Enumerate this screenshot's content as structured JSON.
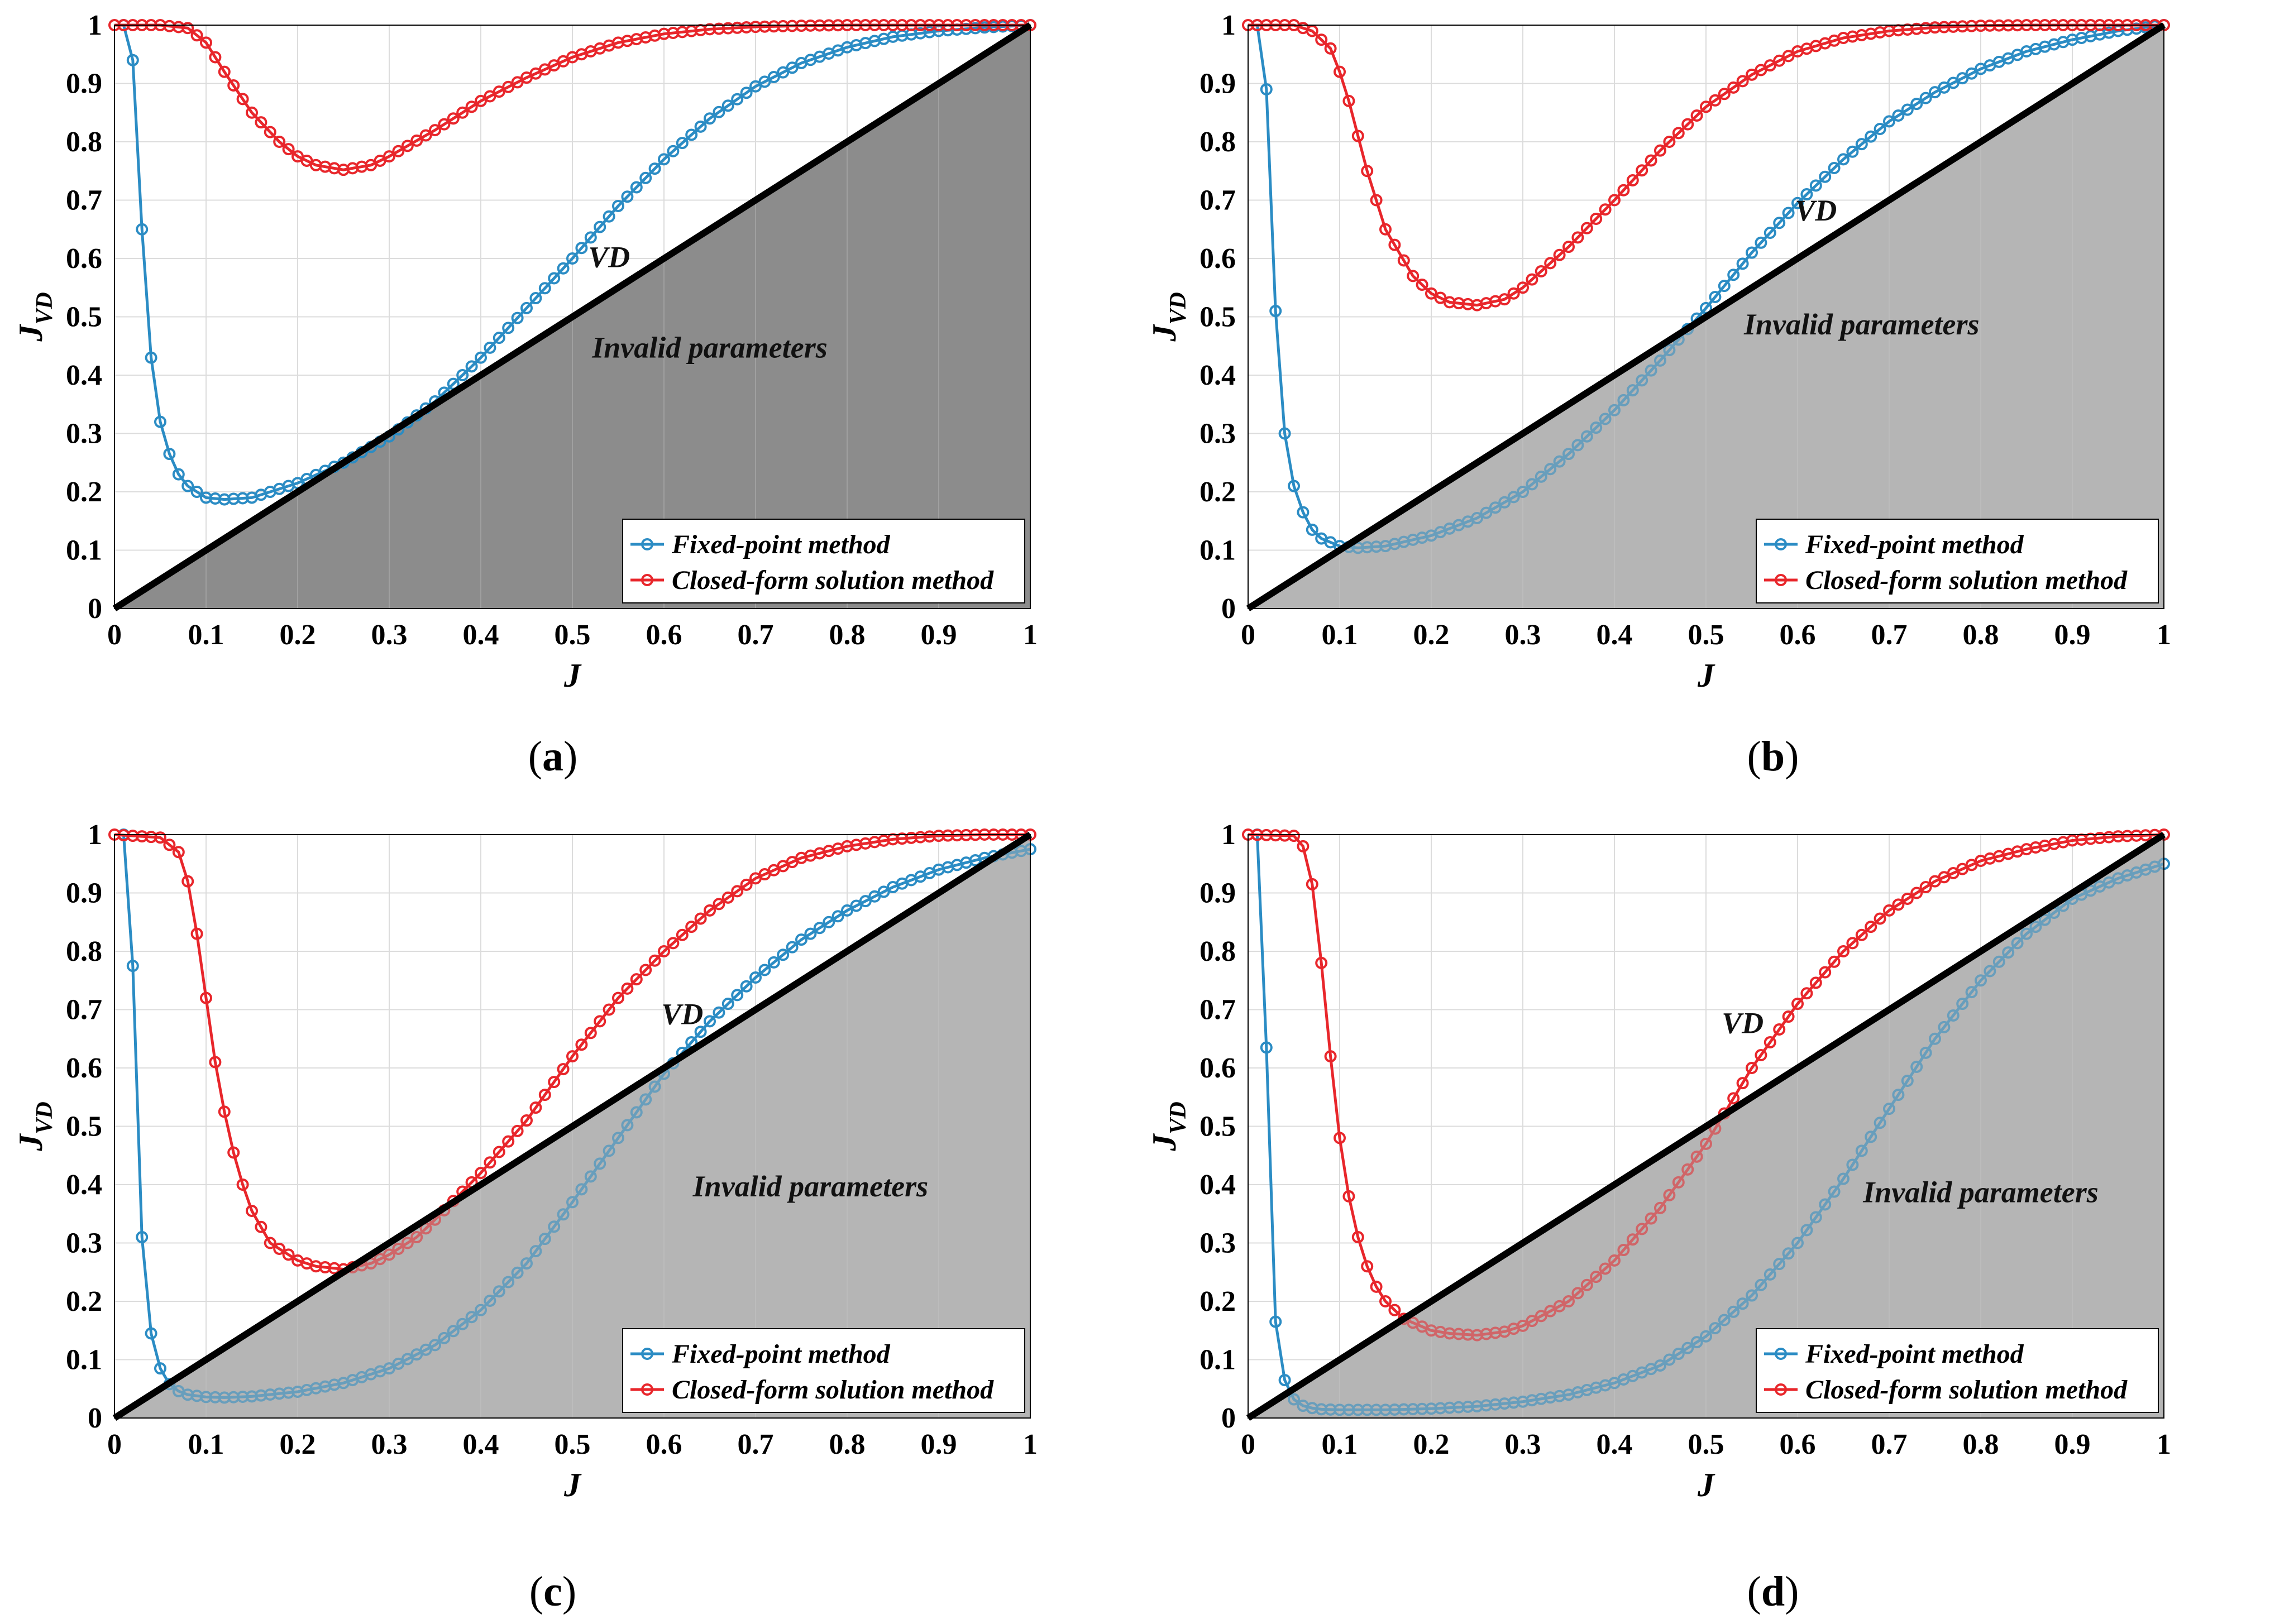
{
  "figure": {
    "captions": [
      "a",
      "b",
      "c",
      "d"
    ]
  },
  "colors": {
    "fixed_point": "#2b8cc4",
    "closed_form": "#e8262b",
    "shade_a": "#8c8c8c",
    "shade_bcd": "#b3b3b3",
    "diagonal": "#000000",
    "grid": "#dcdcdc"
  },
  "chart_data": [
    {
      "type": "line",
      "panel": "a",
      "xlabel": "J",
      "ylabel": "J",
      "ylabel_sub": "VD",
      "xlim": [
        0,
        1
      ],
      "ylim": [
        0,
        1
      ],
      "xticks": [
        "0",
        "0.1",
        "0.2",
        "0.3",
        "0.4",
        "0.5",
        "0.6",
        "0.7",
        "0.8",
        "0.9",
        "1"
      ],
      "yticks": [
        "0",
        "0.1",
        "0.2",
        "0.3",
        "0.4",
        "0.5",
        "0.6",
        "0.7",
        "0.8",
        "0.9",
        "1"
      ],
      "grid": true,
      "legend_position": "bottom-right",
      "shaded_region": "Invalid parameters",
      "diagonal_label": "VD",
      "series": [
        {
          "name": "Fixed-point method",
          "color_key": "fixed_point",
          "marker": "circle",
          "x": [
            0.01,
            0.02,
            0.03,
            0.04,
            0.05,
            0.06,
            0.07,
            0.08,
            0.1,
            0.12,
            0.15,
            0.2,
            0.25,
            0.3,
            0.35,
            0.4,
            0.45,
            0.5,
            0.55,
            0.6,
            0.65,
            0.7,
            0.75,
            0.8,
            0.85,
            0.9,
            0.95,
            1.0
          ],
          "y": [
            1.0,
            0.94,
            0.65,
            0.43,
            0.32,
            0.265,
            0.23,
            0.21,
            0.19,
            0.187,
            0.19,
            0.215,
            0.25,
            0.295,
            0.355,
            0.43,
            0.515,
            0.6,
            0.69,
            0.77,
            0.84,
            0.895,
            0.935,
            0.962,
            0.98,
            0.99,
            0.996,
            1.0
          ]
        },
        {
          "name": "Closed-form solution method",
          "color_key": "closed_form",
          "marker": "circle",
          "x": [
            0.0,
            0.05,
            0.08,
            0.1,
            0.12,
            0.15,
            0.18,
            0.2,
            0.22,
            0.25,
            0.28,
            0.3,
            0.35,
            0.4,
            0.45,
            0.5,
            0.55,
            0.6,
            0.65,
            0.7,
            0.75,
            0.8,
            0.85,
            0.9,
            0.95,
            1.0
          ],
          "y": [
            1.0,
            1.0,
            0.995,
            0.97,
            0.92,
            0.85,
            0.8,
            0.775,
            0.76,
            0.752,
            0.76,
            0.775,
            0.82,
            0.87,
            0.91,
            0.945,
            0.97,
            0.985,
            0.993,
            0.997,
            0.999,
            1.0,
            1.0,
            1.0,
            1.0,
            1.0
          ]
        }
      ],
      "invalid_label_pos": [
        0.65,
        0.43
      ],
      "vd_label_pos": [
        0.54,
        0.585
      ]
    },
    {
      "type": "line",
      "panel": "b",
      "xlabel": "J",
      "ylabel": "J",
      "ylabel_sub": "VD",
      "xlim": [
        0,
        1
      ],
      "ylim": [
        0,
        1
      ],
      "xticks": [
        "0",
        "0.1",
        "0.2",
        "0.3",
        "0.4",
        "0.5",
        "0.6",
        "0.7",
        "0.8",
        "0.9",
        "1"
      ],
      "yticks": [
        "0",
        "0.1",
        "0.2",
        "0.3",
        "0.4",
        "0.5",
        "0.6",
        "0.7",
        "0.8",
        "0.9",
        "1"
      ],
      "grid": true,
      "legend_position": "bottom-right",
      "shaded_region": "Invalid parameters",
      "diagonal_label": "VD",
      "series": [
        {
          "name": "Fixed-point method",
          "color_key": "fixed_point",
          "marker": "circle",
          "x": [
            0.01,
            0.02,
            0.03,
            0.04,
            0.05,
            0.06,
            0.07,
            0.08,
            0.1,
            0.12,
            0.15,
            0.2,
            0.25,
            0.3,
            0.35,
            0.4,
            0.45,
            0.5,
            0.55,
            0.6,
            0.65,
            0.7,
            0.75,
            0.8,
            0.85,
            0.9,
            0.95,
            1.0
          ],
          "y": [
            1.0,
            0.89,
            0.51,
            0.3,
            0.21,
            0.165,
            0.135,
            0.12,
            0.107,
            0.104,
            0.107,
            0.125,
            0.155,
            0.2,
            0.265,
            0.34,
            0.425,
            0.515,
            0.61,
            0.695,
            0.77,
            0.835,
            0.885,
            0.925,
            0.955,
            0.975,
            0.99,
            1.0
          ]
        },
        {
          "name": "Closed-form solution method",
          "color_key": "closed_form",
          "marker": "circle",
          "x": [
            0.0,
            0.05,
            0.07,
            0.09,
            0.1,
            0.11,
            0.12,
            0.13,
            0.15,
            0.18,
            0.2,
            0.22,
            0.25,
            0.28,
            0.3,
            0.35,
            0.4,
            0.45,
            0.5,
            0.55,
            0.6,
            0.65,
            0.7,
            0.75,
            0.8,
            0.85,
            0.9,
            0.95,
            1.0
          ],
          "y": [
            1.0,
            1.0,
            0.99,
            0.96,
            0.92,
            0.87,
            0.81,
            0.75,
            0.65,
            0.57,
            0.54,
            0.525,
            0.52,
            0.53,
            0.55,
            0.62,
            0.7,
            0.785,
            0.86,
            0.915,
            0.955,
            0.978,
            0.99,
            0.996,
            0.999,
            1.0,
            1.0,
            1.0,
            1.0
          ]
        }
      ],
      "invalid_label_pos": [
        0.67,
        0.47
      ],
      "vd_label_pos": [
        0.62,
        0.665
      ]
    },
    {
      "type": "line",
      "panel": "c",
      "xlabel": "J",
      "ylabel": "J",
      "ylabel_sub": "VD",
      "xlim": [
        0,
        1
      ],
      "ylim": [
        0,
        1
      ],
      "xticks": [
        "0",
        "0.1",
        "0.2",
        "0.3",
        "0.4",
        "0.5",
        "0.6",
        "0.7",
        "0.8",
        "0.9",
        "1"
      ],
      "yticks": [
        "0",
        "0.1",
        "0.2",
        "0.3",
        "0.4",
        "0.5",
        "0.6",
        "0.7",
        "0.8",
        "0.9",
        "1"
      ],
      "grid": true,
      "legend_position": "bottom-right",
      "shaded_region": "Invalid parameters",
      "diagonal_label": "VD",
      "series": [
        {
          "name": "Fixed-point method",
          "color_key": "fixed_point",
          "marker": "circle",
          "x": [
            0.01,
            0.02,
            0.03,
            0.04,
            0.05,
            0.06,
            0.07,
            0.08,
            0.1,
            0.12,
            0.15,
            0.2,
            0.25,
            0.3,
            0.35,
            0.4,
            0.45,
            0.5,
            0.55,
            0.6,
            0.65,
            0.7,
            0.75,
            0.8,
            0.85,
            0.9,
            0.95,
            1.0
          ],
          "y": [
            1.0,
            0.775,
            0.31,
            0.145,
            0.085,
            0.058,
            0.046,
            0.04,
            0.036,
            0.035,
            0.037,
            0.045,
            0.06,
            0.085,
            0.125,
            0.185,
            0.265,
            0.37,
            0.48,
            0.59,
            0.68,
            0.755,
            0.82,
            0.87,
            0.91,
            0.94,
            0.96,
            0.975
          ]
        },
        {
          "name": "Closed-form solution method",
          "color_key": "closed_form",
          "marker": "circle",
          "x": [
            0.0,
            0.05,
            0.07,
            0.08,
            0.09,
            0.1,
            0.11,
            0.12,
            0.13,
            0.14,
            0.15,
            0.17,
            0.2,
            0.22,
            0.25,
            0.28,
            0.3,
            0.33,
            0.35,
            0.4,
            0.45,
            0.5,
            0.55,
            0.6,
            0.65,
            0.7,
            0.75,
            0.8,
            0.85,
            0.9,
            0.95,
            1.0
          ],
          "y": [
            1.0,
            0.995,
            0.97,
            0.92,
            0.83,
            0.72,
            0.61,
            0.525,
            0.455,
            0.4,
            0.355,
            0.3,
            0.27,
            0.26,
            0.255,
            0.265,
            0.28,
            0.31,
            0.34,
            0.42,
            0.51,
            0.62,
            0.72,
            0.8,
            0.87,
            0.925,
            0.96,
            0.98,
            0.992,
            0.998,
            1.0,
            1.0
          ]
        }
      ],
      "invalid_label_pos": [
        0.76,
        0.38
      ],
      "vd_label_pos": [
        0.62,
        0.675
      ]
    },
    {
      "type": "line",
      "panel": "d",
      "xlabel": "J",
      "ylabel": "J",
      "ylabel_sub": "VD",
      "xlim": [
        0,
        1
      ],
      "ylim": [
        0,
        1
      ],
      "xticks": [
        "0",
        "0.1",
        "0.2",
        "0.3",
        "0.4",
        "0.5",
        "0.6",
        "0.7",
        "0.8",
        "0.9",
        "1"
      ],
      "yticks": [
        "0",
        "0.1",
        "0.2",
        "0.3",
        "0.4",
        "0.5",
        "0.6",
        "0.7",
        "0.8",
        "0.9",
        "1"
      ],
      "grid": true,
      "legend_position": "bottom-right",
      "shaded_region": "Invalid parameters",
      "diagonal_label": "VD",
      "series": [
        {
          "name": "Fixed-point method",
          "color_key": "fixed_point",
          "marker": "circle",
          "x": [
            0.01,
            0.02,
            0.03,
            0.04,
            0.05,
            0.06,
            0.07,
            0.08,
            0.1,
            0.12,
            0.15,
            0.2,
            0.25,
            0.3,
            0.35,
            0.4,
            0.45,
            0.5,
            0.55,
            0.6,
            0.65,
            0.7,
            0.75,
            0.8,
            0.85,
            0.9,
            0.95,
            1.0
          ],
          "y": [
            1.0,
            0.635,
            0.165,
            0.065,
            0.032,
            0.021,
            0.017,
            0.015,
            0.014,
            0.014,
            0.014,
            0.016,
            0.02,
            0.028,
            0.04,
            0.06,
            0.09,
            0.14,
            0.21,
            0.3,
            0.41,
            0.53,
            0.65,
            0.75,
            0.83,
            0.89,
            0.925,
            0.95
          ]
        },
        {
          "name": "Closed-form solution method",
          "color_key": "closed_form",
          "marker": "circle",
          "x": [
            0.0,
            0.05,
            0.06,
            0.07,
            0.08,
            0.09,
            0.1,
            0.11,
            0.12,
            0.13,
            0.14,
            0.15,
            0.17,
            0.2,
            0.22,
            0.25,
            0.28,
            0.3,
            0.35,
            0.4,
            0.45,
            0.5,
            0.55,
            0.6,
            0.65,
            0.7,
            0.75,
            0.8,
            0.85,
            0.9,
            0.95,
            1.0
          ],
          "y": [
            1.0,
            0.998,
            0.98,
            0.915,
            0.78,
            0.62,
            0.48,
            0.38,
            0.31,
            0.26,
            0.225,
            0.2,
            0.17,
            0.15,
            0.145,
            0.142,
            0.148,
            0.158,
            0.2,
            0.27,
            0.36,
            0.47,
            0.6,
            0.71,
            0.8,
            0.87,
            0.92,
            0.955,
            0.975,
            0.99,
            0.997,
            1.0
          ]
        }
      ],
      "invalid_label_pos": [
        0.8,
        0.37
      ],
      "vd_label_pos": [
        0.54,
        0.66
      ]
    }
  ]
}
